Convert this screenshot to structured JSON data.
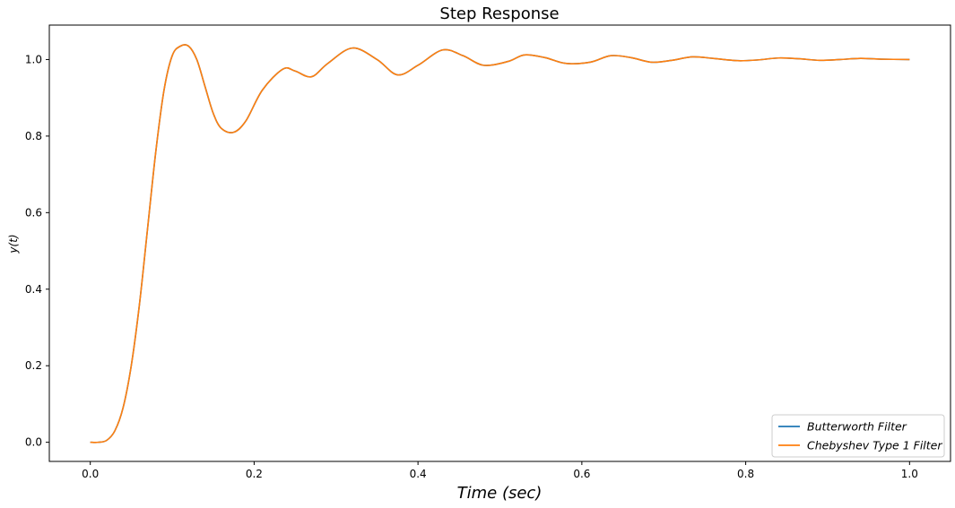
{
  "chart_data": {
    "type": "line",
    "title": "Step Response",
    "xlabel": "Time (sec)",
    "ylabel": "y(t)",
    "xlim": [
      -0.05,
      1.05
    ],
    "ylim": [
      -0.05,
      1.09
    ],
    "x_ticks": [
      {
        "value": 0.0,
        "label": "0.0"
      },
      {
        "value": 0.2,
        "label": "0.2"
      },
      {
        "value": 0.4,
        "label": "0.4"
      },
      {
        "value": 0.6,
        "label": "0.6"
      },
      {
        "value": 0.8,
        "label": "0.8"
      },
      {
        "value": 1.0,
        "label": "1.0"
      }
    ],
    "y_ticks": [
      {
        "value": 0.0,
        "label": "0.0"
      },
      {
        "value": 0.2,
        "label": "0.2"
      },
      {
        "value": 0.4,
        "label": "0.4"
      },
      {
        "value": 0.6,
        "label": "0.6"
      },
      {
        "value": 0.8,
        "label": "0.8"
      },
      {
        "value": 1.0,
        "label": "1.0"
      }
    ],
    "grid": false,
    "legend_position": "lower-right",
    "series": [
      {
        "name": "Butterworth Filter",
        "color": "#1f77b4",
        "x": [
          0.0,
          0.01,
          0.02,
          0.03,
          0.04,
          0.05,
          0.06,
          0.07,
          0.08,
          0.09,
          0.1,
          0.11,
          0.12,
          0.13,
          0.14,
          0.15,
          0.16,
          0.175,
          0.19,
          0.21,
          0.235,
          0.25,
          0.27,
          0.29,
          0.32,
          0.35,
          0.375,
          0.4,
          0.43,
          0.455,
          0.48,
          0.51,
          0.53,
          0.555,
          0.58,
          0.61,
          0.635,
          0.66,
          0.685,
          0.71,
          0.735,
          0.76,
          0.79,
          0.815,
          0.84,
          0.865,
          0.89,
          0.915,
          0.94,
          0.965,
          1.0
        ],
        "y": [
          0.0,
          0.0,
          0.005,
          0.03,
          0.09,
          0.2,
          0.36,
          0.56,
          0.76,
          0.92,
          1.01,
          1.035,
          1.035,
          1.0,
          0.93,
          0.86,
          0.82,
          0.81,
          0.84,
          0.92,
          0.975,
          0.97,
          0.955,
          0.99,
          1.03,
          1.0,
          0.96,
          0.985,
          1.025,
          1.01,
          0.985,
          0.995,
          1.012,
          1.005,
          0.99,
          0.993,
          1.01,
          1.005,
          0.993,
          0.998,
          1.007,
          1.003,
          0.997,
          0.999,
          1.004,
          1.002,
          0.998,
          1.0,
          1.003,
          1.001,
          1.0
        ]
      },
      {
        "name": "Chebyshev Type 1 Filter",
        "color": "#ff7f0e",
        "x": [
          0.0,
          0.01,
          0.02,
          0.03,
          0.04,
          0.05,
          0.06,
          0.07,
          0.08,
          0.09,
          0.1,
          0.11,
          0.12,
          0.13,
          0.14,
          0.15,
          0.16,
          0.175,
          0.19,
          0.21,
          0.235,
          0.25,
          0.27,
          0.29,
          0.32,
          0.35,
          0.375,
          0.4,
          0.43,
          0.455,
          0.48,
          0.51,
          0.53,
          0.555,
          0.58,
          0.61,
          0.635,
          0.66,
          0.685,
          0.71,
          0.735,
          0.76,
          0.79,
          0.815,
          0.84,
          0.865,
          0.89,
          0.915,
          0.94,
          0.965,
          1.0
        ],
        "y": [
          0.0,
          0.0,
          0.005,
          0.03,
          0.09,
          0.2,
          0.36,
          0.56,
          0.76,
          0.92,
          1.01,
          1.035,
          1.035,
          1.0,
          0.93,
          0.86,
          0.82,
          0.81,
          0.84,
          0.92,
          0.975,
          0.97,
          0.955,
          0.99,
          1.03,
          1.0,
          0.96,
          0.985,
          1.025,
          1.01,
          0.985,
          0.995,
          1.012,
          1.005,
          0.99,
          0.993,
          1.01,
          1.005,
          0.993,
          0.998,
          1.007,
          1.003,
          0.997,
          0.999,
          1.004,
          1.002,
          0.998,
          1.0,
          1.003,
          1.001,
          1.0
        ]
      }
    ]
  }
}
